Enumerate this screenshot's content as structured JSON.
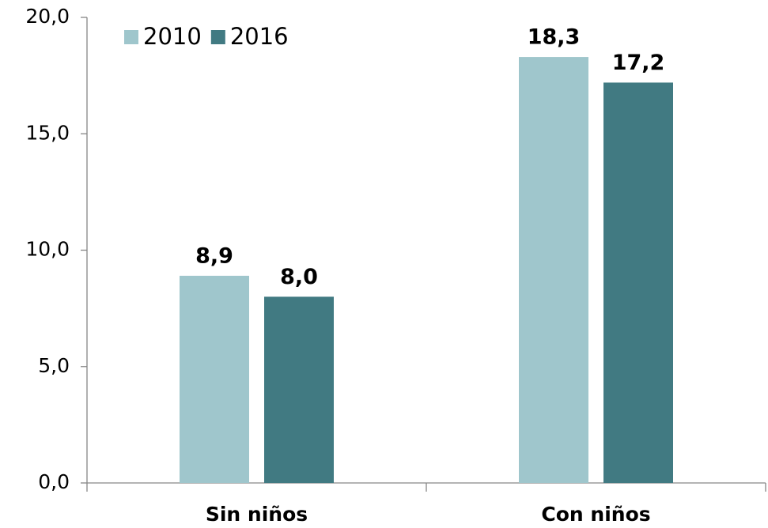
{
  "chart_data": {
    "type": "bar",
    "categories": [
      "Sin niños",
      "Con niños"
    ],
    "series": [
      {
        "name": "2010",
        "color": "#9fc6cc",
        "values": [
          8.9,
          18.3
        ],
        "value_labels": [
          "8,9",
          "18,3"
        ]
      },
      {
        "name": "2016",
        "color": "#417a82",
        "values": [
          8.0,
          17.2
        ],
        "value_labels": [
          "8,0",
          "17,2"
        ]
      }
    ],
    "ylim": [
      0,
      20
    ],
    "yticks": [
      {
        "value": 0,
        "label": "0,0"
      },
      {
        "value": 5,
        "label": "5,0"
      },
      {
        "value": 10,
        "label": "10,0"
      },
      {
        "value": 15,
        "label": "15,0"
      },
      {
        "value": 20,
        "label": "20,0"
      }
    ],
    "grid": false,
    "legend": "top-left"
  }
}
